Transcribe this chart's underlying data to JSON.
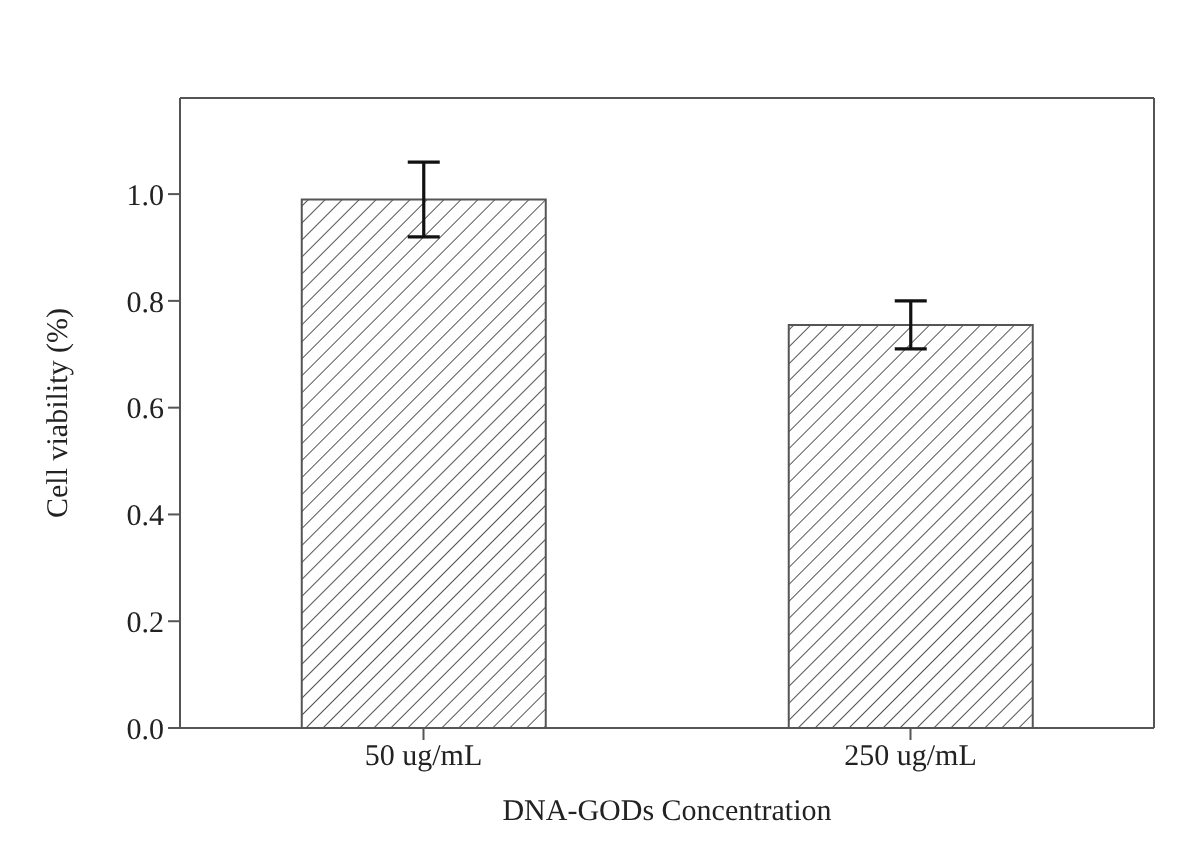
{
  "chart_data": {
    "type": "bar",
    "xlabel": "DNA-GODs Concentration",
    "ylabel": "Cell viability (%)",
    "categories": [
      "50 ug/mL",
      "250 ug/mL"
    ],
    "values": [
      0.99,
      0.755
    ],
    "errors": [
      0.07,
      0.045
    ],
    "color": "#555555",
    "ylim": [
      0,
      1.18
    ],
    "yticks": [
      {
        "value": 0,
        "label": "0.0"
      },
      0.2,
      0.4,
      0.6,
      0.8,
      {
        "value": 1,
        "label": "1.0"
      }
    ],
    "grid": false
  }
}
